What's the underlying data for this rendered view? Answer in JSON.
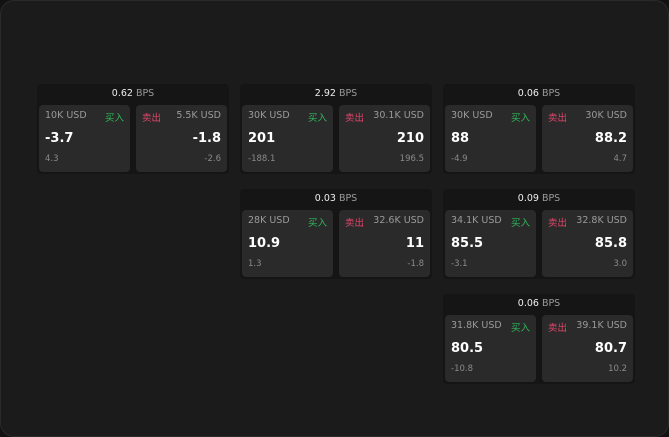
{
  "buy_label": "买入",
  "sell_label": "卖出",
  "unit": "BPS",
  "cards": [
    {
      "bps": "0.62",
      "buy": {
        "size": "10K USD",
        "price": "-3.7",
        "change": "4.3"
      },
      "sell": {
        "size": "5.5K USD",
        "price": "-1.8",
        "change": "-2.6"
      }
    },
    {
      "bps": "2.92",
      "buy": {
        "size": "30K USD",
        "price": "201",
        "change": "-188.1"
      },
      "sell": {
        "size": "30.1K USD",
        "price": "210",
        "change": "196.5"
      }
    },
    {
      "bps": "0.06",
      "buy": {
        "size": "30K USD",
        "price": "88",
        "change": "-4.9"
      },
      "sell": {
        "size": "30K USD",
        "price": "88.2",
        "change": "4.7"
      }
    },
    {
      "bps": "0.03",
      "buy": {
        "size": "28K USD",
        "price": "10.9",
        "change": "1.3"
      },
      "sell": {
        "size": "32.6K USD",
        "price": "11",
        "change": "-1.8"
      }
    },
    {
      "bps": "0.09",
      "buy": {
        "size": "34.1K USD",
        "price": "85.5",
        "change": "-3.1"
      },
      "sell": {
        "size": "32.8K USD",
        "price": "85.8",
        "change": "3.0"
      }
    },
    {
      "bps": "0.06",
      "buy": {
        "size": "31.8K USD",
        "price": "80.5",
        "change": "-10.8"
      },
      "sell": {
        "size": "39.1K USD",
        "price": "80.7",
        "change": "10.2"
      }
    }
  ]
}
